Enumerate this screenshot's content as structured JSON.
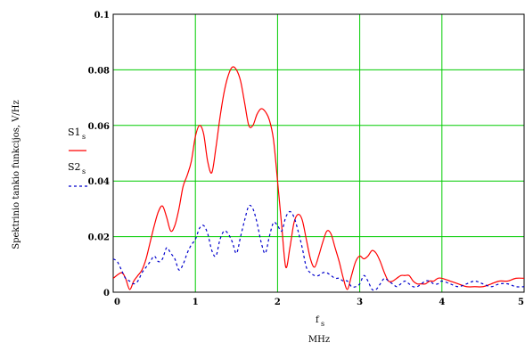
{
  "chart_data": {
    "type": "line",
    "title": "",
    "ylabel": "Spektrinio tankio funkcijos, V/Hz",
    "xlabel_main": "f",
    "xlabel_sub": "s",
    "xlabel_unit": "MHz",
    "xlim": [
      0,
      5
    ],
    "ylim": [
      0,
      0.1
    ],
    "grid": true,
    "grid_color": "#00cc00",
    "x_ticks": [
      "0",
      "1",
      "2",
      "3",
      "4",
      "5"
    ],
    "y_ticks": [
      "0",
      "0.02",
      "0.04",
      "0.06",
      "0.08",
      "0.1"
    ],
    "legend_position": "left",
    "series": [
      {
        "name": "S1",
        "name_sub": "s",
        "color": "#ff0000",
        "style": "solid",
        "x": [
          0,
          0.1,
          0.15,
          0.2,
          0.25,
          0.3,
          0.35,
          0.4,
          0.45,
          0.5,
          0.55,
          0.6,
          0.65,
          0.7,
          0.75,
          0.8,
          0.85,
          0.9,
          0.95,
          1.0,
          1.05,
          1.1,
          1.15,
          1.2,
          1.25,
          1.3,
          1.35,
          1.4,
          1.45,
          1.5,
          1.55,
          1.6,
          1.65,
          1.7,
          1.75,
          1.8,
          1.85,
          1.9,
          1.95,
          2.0,
          2.05,
          2.1,
          2.15,
          2.2,
          2.25,
          2.3,
          2.35,
          2.4,
          2.45,
          2.5,
          2.55,
          2.6,
          2.65,
          2.7,
          2.75,
          2.8,
          2.85,
          2.9,
          2.95,
          3.0,
          3.05,
          3.1,
          3.15,
          3.2,
          3.25,
          3.3,
          3.35,
          3.4,
          3.45,
          3.5,
          3.55,
          3.6,
          3.65,
          3.7,
          3.75,
          3.8,
          3.85,
          3.9,
          3.95,
          4.0,
          4.1,
          4.2,
          4.3,
          4.4,
          4.5,
          4.6,
          4.7,
          4.8,
          4.9,
          5.0
        ],
        "y": [
          0.005,
          0.007,
          0.005,
          0.001,
          0.004,
          0.006,
          0.008,
          0.012,
          0.018,
          0.024,
          0.029,
          0.031,
          0.027,
          0.022,
          0.024,
          0.03,
          0.038,
          0.042,
          0.047,
          0.056,
          0.06,
          0.057,
          0.047,
          0.043,
          0.052,
          0.063,
          0.072,
          0.078,
          0.081,
          0.08,
          0.076,
          0.068,
          0.06,
          0.06,
          0.064,
          0.066,
          0.065,
          0.062,
          0.055,
          0.04,
          0.024,
          0.009,
          0.016,
          0.025,
          0.028,
          0.026,
          0.019,
          0.012,
          0.009,
          0.013,
          0.018,
          0.022,
          0.021,
          0.016,
          0.011,
          0.005,
          0.001,
          0.006,
          0.011,
          0.013,
          0.012,
          0.013,
          0.015,
          0.014,
          0.011,
          0.007,
          0.004,
          0.004,
          0.005,
          0.006,
          0.006,
          0.006,
          0.004,
          0.003,
          0.003,
          0.003,
          0.004,
          0.004,
          0.005,
          0.005,
          0.004,
          0.003,
          0.002,
          0.002,
          0.002,
          0.003,
          0.004,
          0.004,
          0.005,
          0.005
        ]
      },
      {
        "name": "S2",
        "name_sub": "s",
        "color": "#0000cc",
        "style": "dashed",
        "x": [
          0,
          0.05,
          0.1,
          0.15,
          0.2,
          0.25,
          0.3,
          0.35,
          0.4,
          0.45,
          0.5,
          0.55,
          0.6,
          0.65,
          0.7,
          0.75,
          0.8,
          0.85,
          0.9,
          0.95,
          1.0,
          1.05,
          1.1,
          1.15,
          1.2,
          1.25,
          1.3,
          1.35,
          1.4,
          1.45,
          1.5,
          1.55,
          1.6,
          1.65,
          1.7,
          1.75,
          1.8,
          1.85,
          1.9,
          1.95,
          2.0,
          2.05,
          2.1,
          2.15,
          2.2,
          2.25,
          2.3,
          2.35,
          2.4,
          2.45,
          2.5,
          2.55,
          2.6,
          2.65,
          2.7,
          2.75,
          2.8,
          2.85,
          2.9,
          2.95,
          3.0,
          3.05,
          3.1,
          3.15,
          3.2,
          3.25,
          3.3,
          3.35,
          3.4,
          3.45,
          3.5,
          3.55,
          3.6,
          3.65,
          3.7,
          3.75,
          3.8,
          3.85,
          3.9,
          3.95,
          4.0,
          4.1,
          4.2,
          4.3,
          4.4,
          4.5,
          4.6,
          4.7,
          4.8,
          4.9,
          5.0
        ],
        "y": [
          0.012,
          0.011,
          0.008,
          0.005,
          0.004,
          0.003,
          0.004,
          0.007,
          0.009,
          0.011,
          0.013,
          0.011,
          0.012,
          0.016,
          0.014,
          0.012,
          0.008,
          0.01,
          0.014,
          0.017,
          0.019,
          0.023,
          0.024,
          0.021,
          0.015,
          0.013,
          0.019,
          0.022,
          0.021,
          0.018,
          0.014,
          0.02,
          0.026,
          0.031,
          0.03,
          0.025,
          0.018,
          0.014,
          0.02,
          0.025,
          0.024,
          0.022,
          0.027,
          0.029,
          0.027,
          0.022,
          0.016,
          0.009,
          0.007,
          0.006,
          0.006,
          0.007,
          0.007,
          0.006,
          0.005,
          0.005,
          0.004,
          0.004,
          0.002,
          0.002,
          0.003,
          0.006,
          0.004,
          0.001,
          0.001,
          0.003,
          0.005,
          0.004,
          0.003,
          0.002,
          0.003,
          0.004,
          0.003,
          0.002,
          0.002,
          0.003,
          0.004,
          0.004,
          0.003,
          0.003,
          0.004,
          0.003,
          0.002,
          0.003,
          0.004,
          0.003,
          0.002,
          0.003,
          0.003,
          0.002,
          0.002
        ]
      }
    ]
  }
}
